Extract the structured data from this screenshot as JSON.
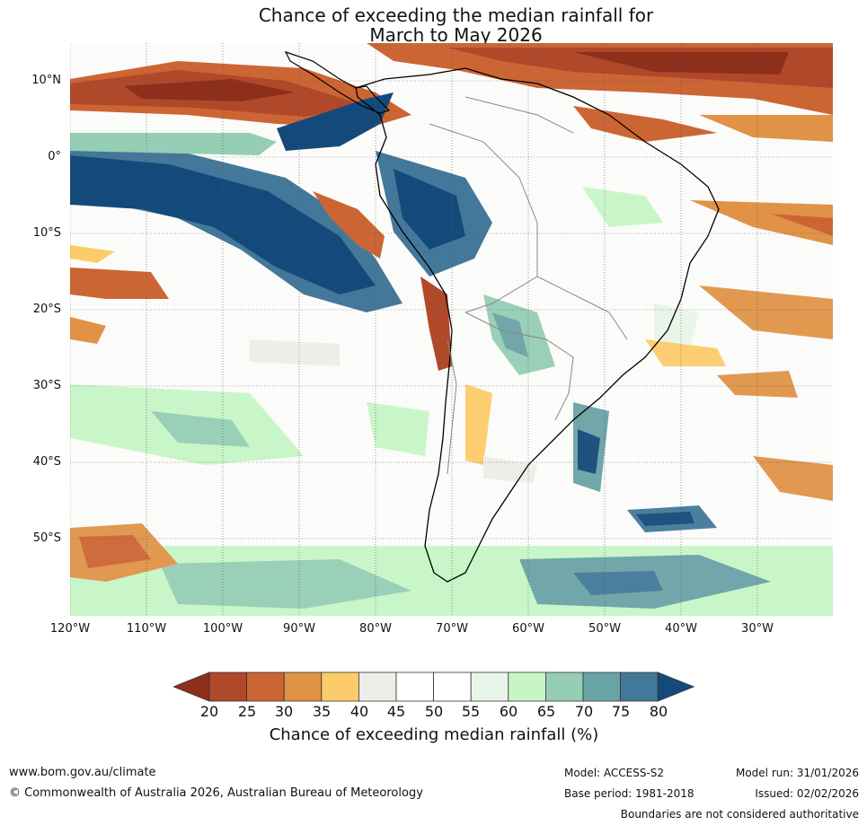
{
  "title": {
    "line1": "Chance of exceeding the median rainfall for",
    "line2": "March to May 2026"
  },
  "map": {
    "lat_labels": [
      "10°N",
      "0°",
      "10°S",
      "20°S",
      "30°S",
      "40°S",
      "50°S"
    ],
    "lon_labels": [
      "120°W",
      "110°W",
      "100°W",
      "90°W",
      "80°W",
      "70°W",
      "60°W",
      "50°W",
      "40°W",
      "30°W"
    ]
  },
  "colorbar": {
    "ticks": [
      "20",
      "25",
      "30",
      "35",
      "40",
      "45",
      "50",
      "55",
      "60",
      "65",
      "70",
      "75",
      "80"
    ],
    "colors": [
      "#8e2f1c",
      "#b0482a",
      "#cc6534",
      "#e09347",
      "#fdcc6a",
      "#efede8",
      "#ffffff",
      "#ffffff",
      "#e9f5e8",
      "#c6f6c6",
      "#95cdb5",
      "#6aa3a6",
      "#43789a",
      "#144a7b"
    ],
    "label": "Chance of exceeding median rainfall (%)"
  },
  "footer": {
    "website": "www.bom.gov.au/climate",
    "copyright": "© Commonwealth of Australia 2026, Australian Bureau of Meteorology",
    "model": "Model: ACCESS-S2",
    "base_period": "Base period: 1981-2018",
    "model_run": "Model run: 31/01/2026",
    "issued": "Issued: 02/02/2026",
    "disclaimer": "Boundaries are not considered authoritative"
  }
}
